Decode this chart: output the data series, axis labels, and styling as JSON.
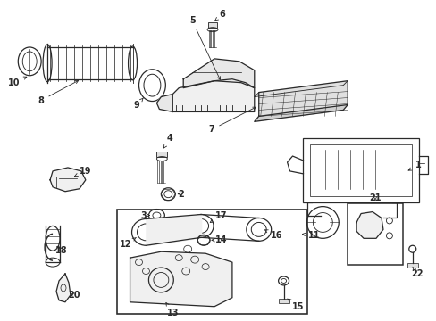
{
  "bg_color": "#ffffff",
  "line_color": "#2a2a2a",
  "label_color": "#111111",
  "fig_width": 4.89,
  "fig_height": 3.6,
  "dpi": 100,
  "label_fs": 7.0,
  "arrow_lw": 0.6
}
